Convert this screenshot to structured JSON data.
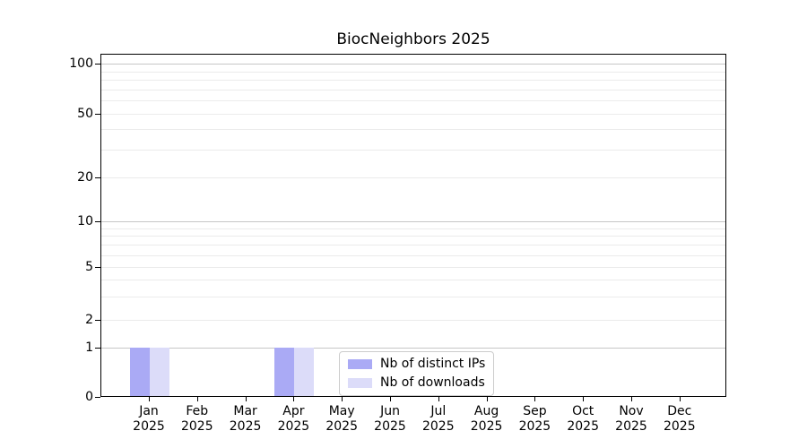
{
  "chart_data": {
    "type": "bar",
    "title": "BiocNeighbors 2025",
    "xlabel": "",
    "ylabel": "",
    "year": "2025",
    "months": [
      "Jan",
      "Feb",
      "Mar",
      "Apr",
      "May",
      "Jun",
      "Jul",
      "Aug",
      "Sep",
      "Oct",
      "Nov",
      "Dec"
    ],
    "categories": [
      "Jan 2025",
      "Feb 2025",
      "Mar 2025",
      "Apr 2025",
      "May 2025",
      "Jun 2025",
      "Jul 2025",
      "Aug 2025",
      "Sep 2025",
      "Oct 2025",
      "Nov 2025",
      "Dec 2025"
    ],
    "series": [
      {
        "name": "Nb of distinct IPs",
        "color": "#aaaaf5",
        "values": [
          1,
          0,
          0,
          1,
          0,
          0,
          0,
          0,
          0,
          0,
          0,
          0
        ]
      },
      {
        "name": "Nb of downloads",
        "color": "#dcdcf9",
        "values": [
          1,
          0,
          0,
          1,
          0,
          0,
          0,
          0,
          0,
          0,
          0,
          0
        ]
      }
    ],
    "y_axis": {
      "scale": "symlog",
      "major_ticks": [
        0,
        1,
        2,
        5,
        10,
        20,
        50,
        100
      ],
      "minor_ticks": [
        3,
        4,
        6,
        7,
        8,
        9,
        30,
        40,
        60,
        70,
        80,
        90
      ],
      "ylim": [
        0,
        115
      ]
    },
    "legend": {
      "position": "lower center inside",
      "items": [
        "Nb of distinct IPs",
        "Nb of downloads"
      ]
    },
    "grid": true,
    "colors": {
      "decade_gridline": "#c6c6c6",
      "minor_gridline": "#ebebeb",
      "axis": "#000000",
      "background": "#ffffff",
      "legend_border": "#cccccc"
    }
  }
}
